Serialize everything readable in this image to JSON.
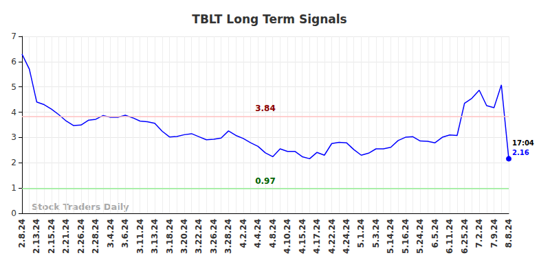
{
  "chart_data": {
    "type": "line",
    "title": "TBLT Long Term Signals",
    "watermark": "Stock Traders Daily",
    "last_label": "17:04",
    "categories": [
      "2.8.24",
      null,
      "2.13.24",
      null,
      "2.15.24",
      null,
      "2.21.24",
      null,
      "2.26.24",
      null,
      "2.28.24",
      null,
      "3.4.24",
      null,
      "3.6.24",
      null,
      "3.11.24",
      null,
      "3.13.24",
      null,
      "3.18.24",
      null,
      "3.20.24",
      null,
      "3.22.24",
      null,
      "3.26.24",
      null,
      "3.28.24",
      null,
      "4.2.24",
      null,
      "4.4.24",
      null,
      "4.8.24",
      null,
      "4.10.24",
      null,
      "4.15.24",
      null,
      "4.17.24",
      null,
      "4.22.24",
      null,
      "4.24.24",
      null,
      "5.1.24",
      null,
      "5.3.24",
      null,
      "5.14.24",
      null,
      "5.16.24",
      null,
      "5.24.24",
      null,
      "6.5.24",
      null,
      "6.11.24",
      null,
      "6.25.24",
      null,
      "7.2.24",
      null,
      "7.9.24",
      null,
      "8.8.24"
    ],
    "values": [
      6.3,
      5.7,
      4.4,
      4.3,
      4.12,
      3.9,
      3.65,
      3.47,
      3.49,
      3.68,
      3.72,
      3.87,
      3.8,
      3.8,
      3.88,
      3.78,
      3.65,
      3.62,
      3.56,
      3.25,
      3.02,
      3.04,
      3.11,
      3.15,
      3.03,
      2.91,
      2.93,
      2.98,
      3.26,
      3.08,
      2.96,
      2.79,
      2.65,
      2.39,
      2.24,
      2.55,
      2.45,
      2.45,
      2.24,
      2.16,
      2.41,
      2.3,
      2.76,
      2.81,
      2.79,
      2.52,
      2.3,
      2.38,
      2.55,
      2.55,
      2.61,
      2.88,
      3.01,
      3.03,
      2.86,
      2.85,
      2.79,
      3.01,
      3.1,
      3.08,
      4.35,
      4.55,
      4.87,
      4.26,
      4.18,
      5.08,
      2.16
    ],
    "color": "#0000ff",
    "reference_lines": [
      {
        "value": 3.84,
        "color": "#ffc0c0"
      },
      {
        "value": 0.97,
        "color": "#90ee90"
      }
    ],
    "ylim": [
      0,
      7
    ],
    "yticks": [
      0,
      1,
      2,
      3,
      4,
      5,
      6,
      7
    ],
    "grid": true
  }
}
